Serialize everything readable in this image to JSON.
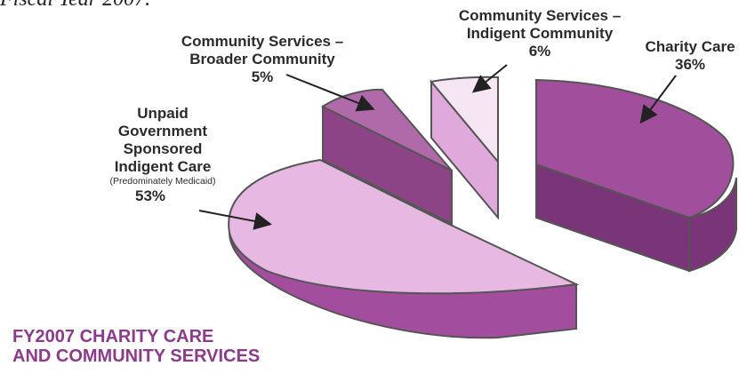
{
  "header": {
    "caption": "Fiscal Year 2007."
  },
  "colors": {
    "charity_top": "#a14f9c",
    "charity_side": "#7a3578",
    "unpaid_top": "#e6b8e2",
    "unpaid_side": "#a24d9d",
    "broader_top": "#b16aa9",
    "broader_side": "#8d4487",
    "indigent_top": "#f6e6f4",
    "indigent_side": "#e0a9dc",
    "title": "#8a3c8a"
  },
  "chart_data": {
    "type": "pie",
    "title_lines": [
      "FY2007 CHARITY CARE",
      "AND COMMUNITY SERVICES"
    ],
    "slices": [
      {
        "label": "Charity Care",
        "value": 36,
        "pct_label": "36%"
      },
      {
        "label_lines": [
          "Unpaid",
          "Government",
          "Sponsored",
          "Indigent Care"
        ],
        "sublabel": "(Predominately Medicaid)",
        "value": 53,
        "pct_label": "53%"
      },
      {
        "label_lines": [
          "Community Services –",
          "Broader Community"
        ],
        "value": 5,
        "pct_label": "5%"
      },
      {
        "label_lines": [
          "Community Services –",
          "Indigent Community"
        ],
        "value": 6,
        "pct_label": "6%"
      }
    ]
  }
}
